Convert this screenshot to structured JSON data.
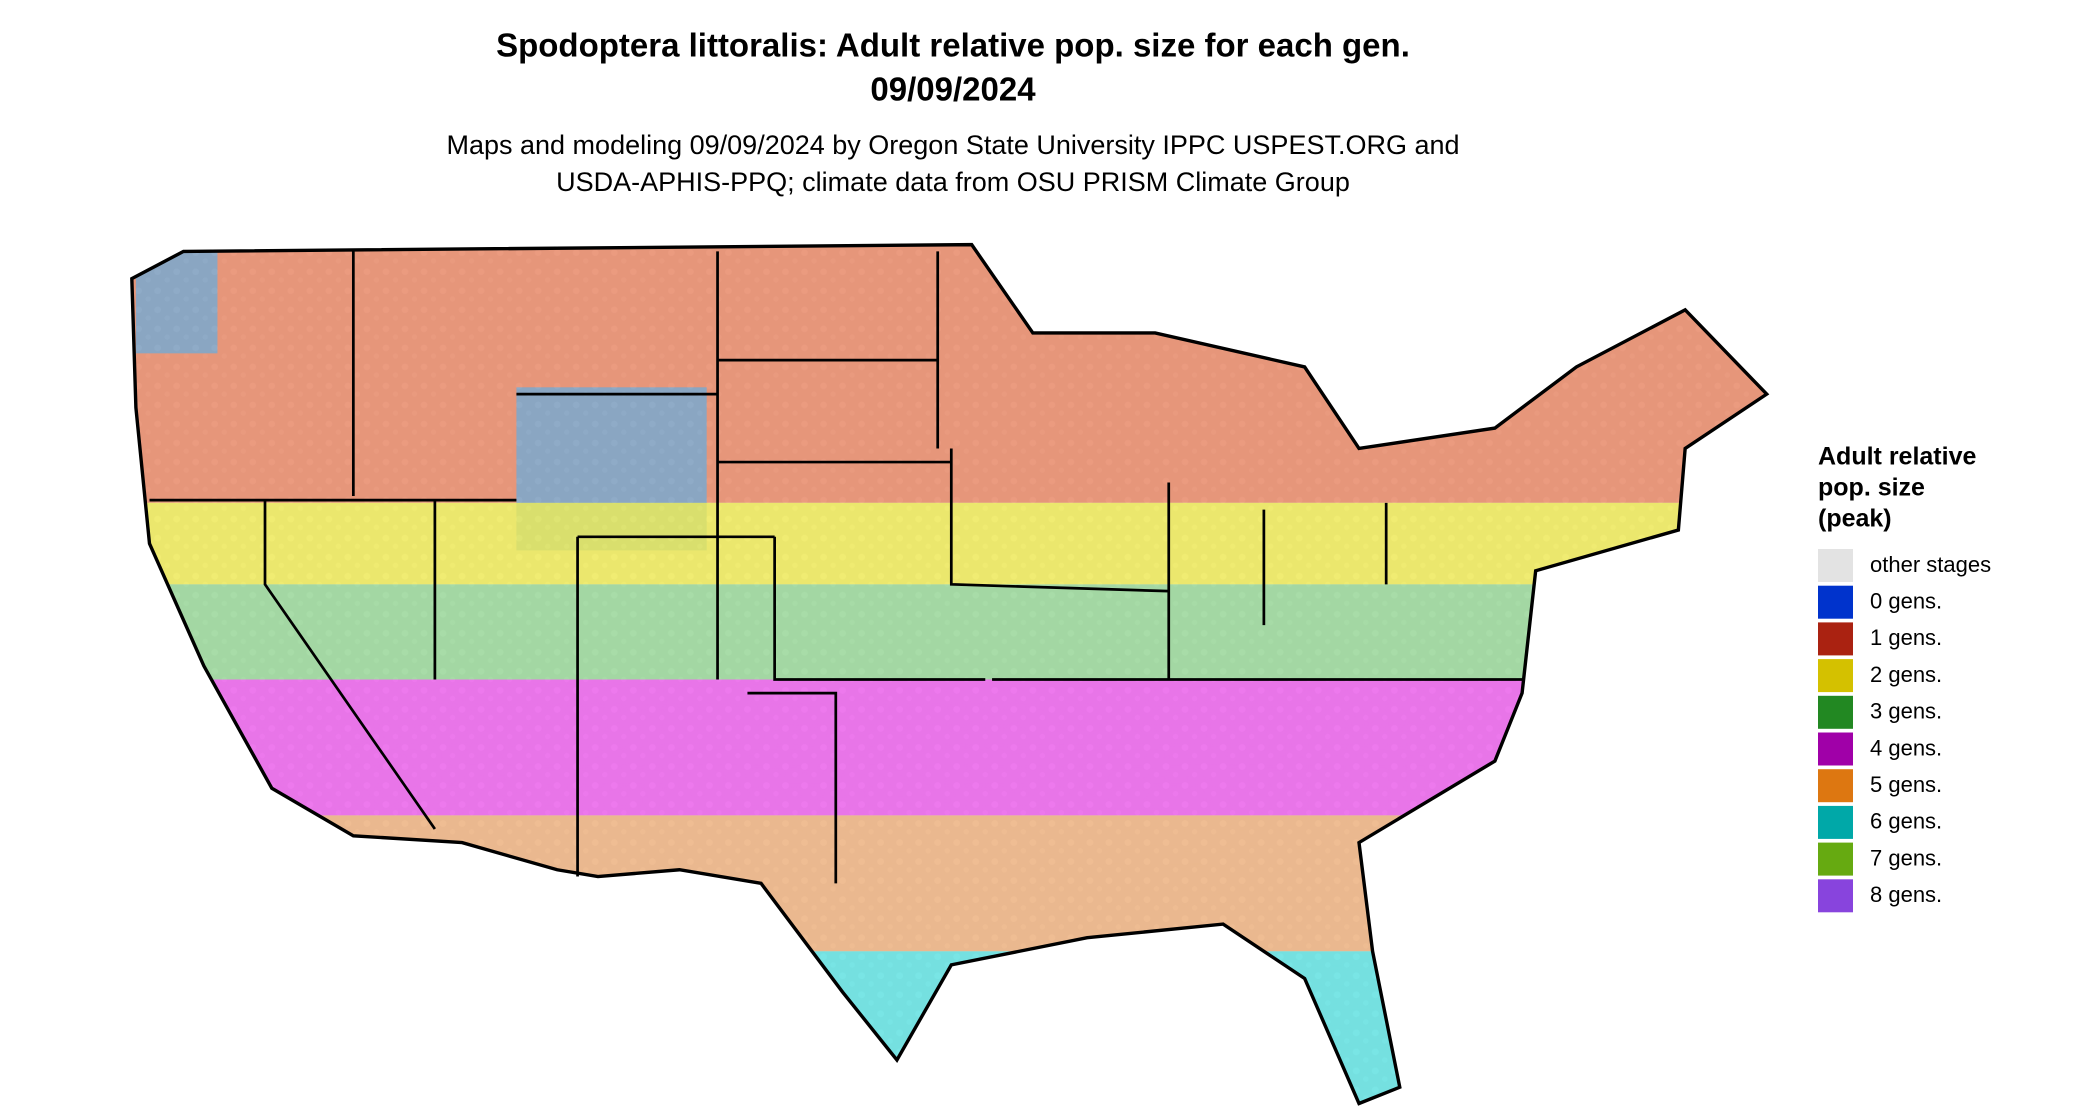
{
  "header": {
    "title": [
      "Spodoptera littoralis: Adult relative pop. size for each gen.",
      "09/09/2024"
    ],
    "subtitle": [
      "Maps and modeling 09/09/2024 by Oregon State University IPPC USPEST.ORG and",
      "USDA-APHIS-PPQ; climate data from OSU PRISM Climate Group"
    ]
  },
  "legend": {
    "title": [
      "Adult relative",
      "pop. size",
      "(peak)"
    ],
    "items": [
      {
        "label": "other stages",
        "color": "#e3e3e3"
      },
      {
        "label": "0 gens.",
        "color": "#0033cc"
      },
      {
        "label": "1 gens.",
        "color": "#aa2211"
      },
      {
        "label": "2 gens.",
        "color": "#d4c100"
      },
      {
        "label": "3 gens.",
        "color": "#228822"
      },
      {
        "label": "4 gens.",
        "color": "#a000a8"
      },
      {
        "label": "5 gens.",
        "color": "#dd7711"
      },
      {
        "label": "6 gens.",
        "color": "#00a8a8"
      },
      {
        "label": "7 gens.",
        "color": "#66aa11"
      },
      {
        "label": "8 gens.",
        "color": "#8844dd"
      }
    ]
  }
}
